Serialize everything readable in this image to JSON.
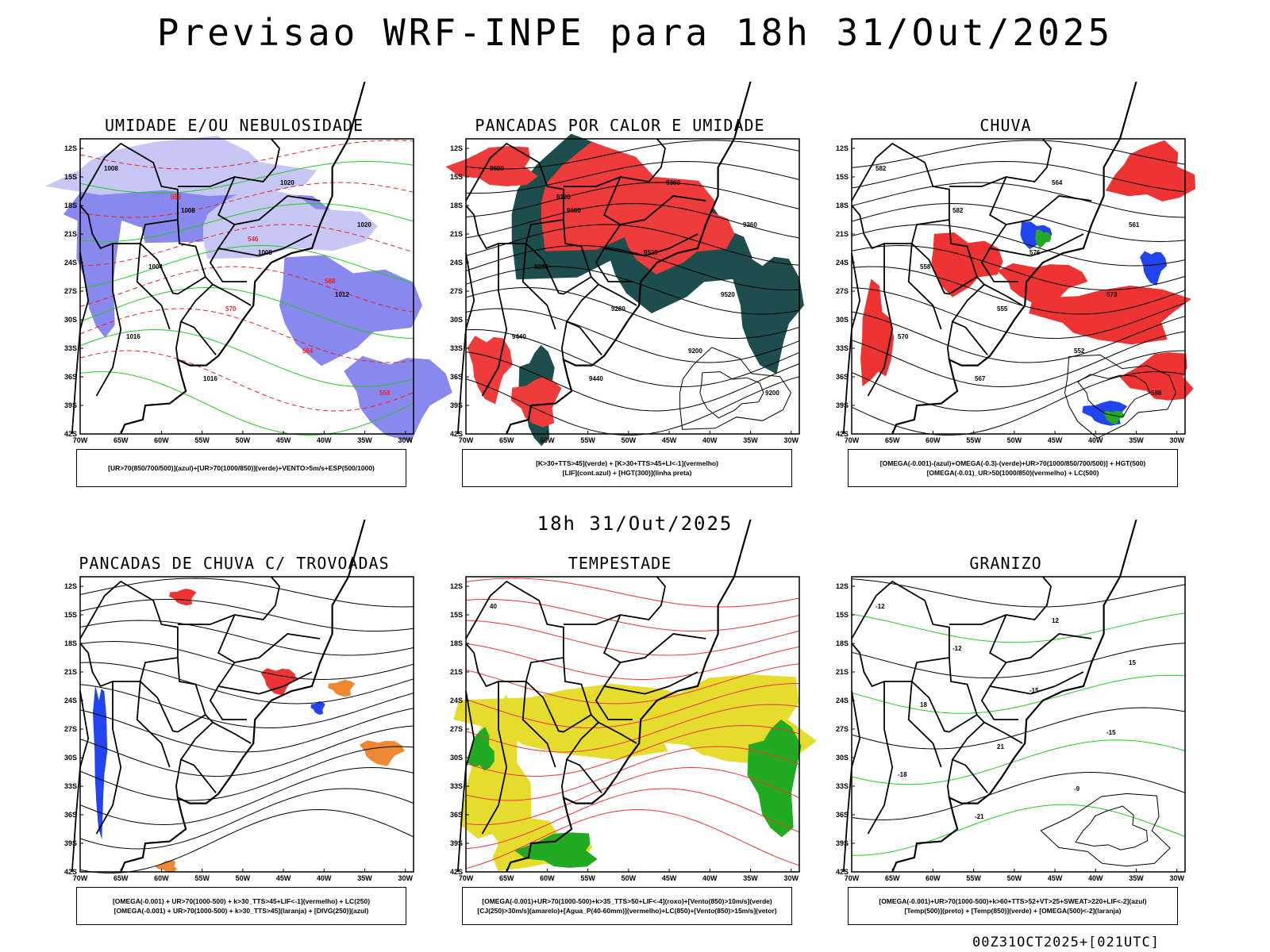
{
  "header": {
    "title": "Previsao WRF-INPE  para 18h 31/Out/2025",
    "subtitle": "18h 31/Out/2025",
    "footer": "00Z31OCT2025+[021UTC]"
  },
  "axes": {
    "lat_labels": [
      "12S",
      "15S",
      "18S",
      "21S",
      "24S",
      "27S",
      "30S",
      "33S",
      "36S",
      "39S",
      "42S"
    ],
    "lon_labels": [
      "70W",
      "65W",
      "60W",
      "55W",
      "50W",
      "45W",
      "40W",
      "35W",
      "30W"
    ]
  },
  "panels": [
    {
      "id": "umidade",
      "title": "UMIDADE E/OU NEBULOSIDADE",
      "legend": [
        "[UR>70(850/700/500)](azul)+[UR>70(1000/850)](verde)+VENTO>5m/s+ESP(500/1000)"
      ],
      "contour_labels": [
        "1008",
        "1008",
        "1008",
        "1012",
        "1016",
        "1016",
        "1020",
        "1020",
        "1004",
        "570",
        "564",
        "558",
        "552",
        "546",
        "588"
      ],
      "colors": {
        "fill": "#8888ee",
        "contour": "#22cc22",
        "dashed": "#ee2222"
      }
    },
    {
      "id": "pancadas_calor",
      "title": "PANCADAS POR CALOR E UMIDADE",
      "legend": [
        "[K>30+TTS>45](verde) + [K>30+TTS>45+LI<-1](vermelho)",
        "[LIF](cont.azul) + [HGT(300)](linha preta)"
      ],
      "contour_labels": [
        "9600",
        "9600",
        "9520",
        "9520",
        "9440",
        "9440",
        "9360",
        "9360",
        "9280",
        "9280",
        "9200",
        "9200",
        "9120"
      ],
      "colors": {
        "fill_green": "#1e4d4d",
        "fill_red": "#ee3b3b",
        "contour": "#3344ee"
      }
    },
    {
      "id": "chuva",
      "title": "CHUVA",
      "legend": [
        "[OMEGA(-0.001)-(azul)+OMEGA(-0.3)-(verde)+UR>70(1000/850/700/500)] + HGT(500)",
        "[OMEGA(-0.01)_UR>50(1000/850)(vermelho) + LC(500)"
      ],
      "contour_labels": [
        "582",
        "582",
        "576",
        "573",
        "570",
        "567",
        "564",
        "561",
        "558",
        "555",
        "552",
        "588"
      ],
      "colors": {
        "fill_red": "#ee3333",
        "fill_blue": "#2244ee",
        "fill_green": "#22aa22"
      }
    },
    {
      "id": "trovoadas",
      "title": "PANCADAS DE CHUVA C/ TROVOADAS",
      "legend": [
        "[OMEGA(-0.001) + UR>70(1000-500) + k>30_TTS>45+LIF<-1](vermelho) + LC(250)",
        "[OMEGA(-0.001) + UR>70(1000-500) + k>30_TTS>45](laranja) + [DIVG(250)](azul)"
      ],
      "contour_labels": [],
      "colors": {
        "fill_red": "#ee3333",
        "fill_blue": "#2244ee",
        "fill_orange": "#ee8833"
      }
    },
    {
      "id": "tempestade",
      "title": "TEMPESTADE",
      "legend": [
        "[OMEGA(-0.001)+UR>70(1000-500)+k>35_TTS>50+LIF<-4](roxo)+[Vento(850)>10m/s](verde)",
        "[CJ(250)>30m/s](amarelo)+[Agua_P(40-60mm)](vermelho)+LC(850)+[Vento(850)>15m/s](vetor)"
      ],
      "contour_labels": [
        "40"
      ],
      "colors": {
        "fill_yellow": "#e5dc2e",
        "fill_green": "#22aa22",
        "contour": "#ee3333"
      }
    },
    {
      "id": "granizo",
      "title": "GRANIZO",
      "legend": [
        "[OMEGA(-0.001)+UR>70(1000-500)+k>60+TTS>52+VT>25+SWEAT>220+LIF<-2](azul)",
        "[Temp(500)](preto) + [Temp(850)](verde) + [OMEGA(500)<-2](laranja)"
      ],
      "contour_labels": [
        "-12",
        "-12",
        "-15",
        "-15",
        "-18",
        "-21",
        "12",
        "15",
        "18",
        "21",
        "-9"
      ],
      "colors": {
        "contour_green": "#22cc22",
        "contour_orange": "#cc7733"
      }
    }
  ]
}
